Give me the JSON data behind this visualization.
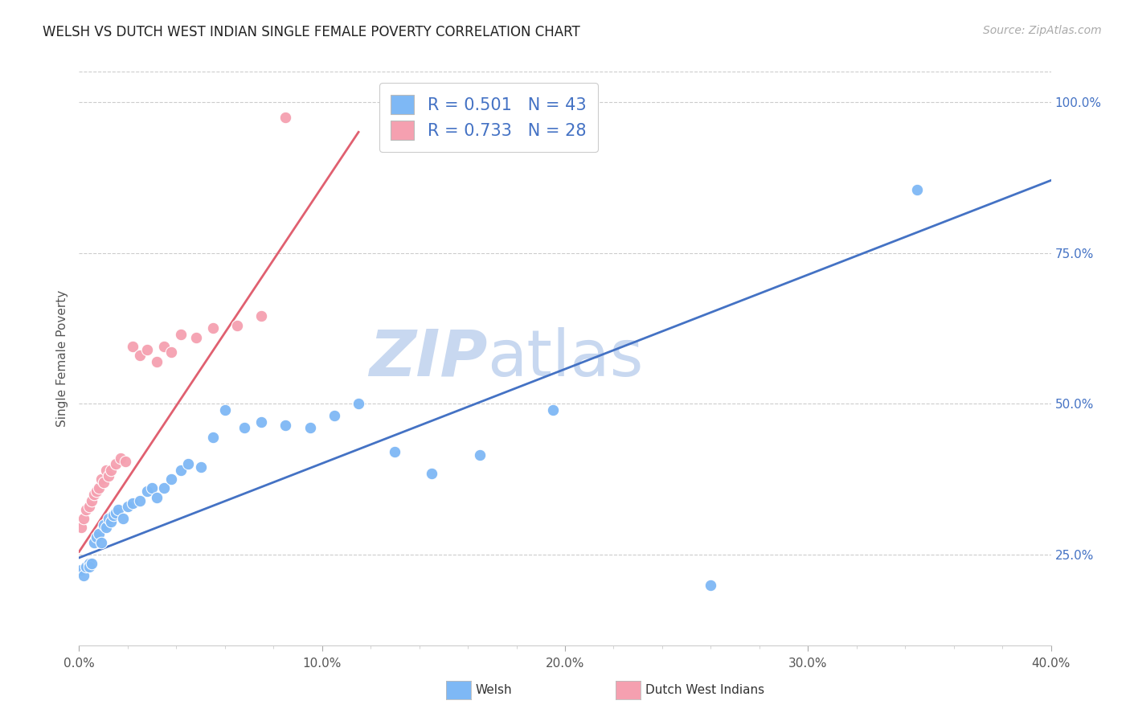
{
  "title": "WELSH VS DUTCH WEST INDIAN SINGLE FEMALE POVERTY CORRELATION CHART",
  "source": "Source: ZipAtlas.com",
  "ylabel_text": "Single Female Poverty",
  "xlim": [
    0.0,
    0.4
  ],
  "ylim": [
    0.1,
    1.05
  ],
  "xtick_labels": [
    "0.0%",
    "",
    "",
    "",
    "",
    "10.0%",
    "",
    "",
    "",
    "",
    "20.0%",
    "",
    "",
    "",
    "",
    "30.0%",
    "",
    "",
    "",
    "",
    "40.0%"
  ],
  "xtick_vals": [
    0.0,
    0.02,
    0.04,
    0.06,
    0.08,
    0.1,
    0.12,
    0.14,
    0.16,
    0.18,
    0.2,
    0.22,
    0.24,
    0.26,
    0.28,
    0.3,
    0.32,
    0.34,
    0.36,
    0.38,
    0.4
  ],
  "ytick_labels": [
    "25.0%",
    "50.0%",
    "75.0%",
    "100.0%"
  ],
  "ytick_vals": [
    0.25,
    0.5,
    0.75,
    1.0
  ],
  "welsh_color": "#7EB8F5",
  "dutch_color": "#F5A0B0",
  "welsh_line_color": "#4472C4",
  "dutch_line_color": "#E06070",
  "welsh_R": 0.501,
  "welsh_N": 43,
  "dutch_R": 0.733,
  "dutch_N": 28,
  "watermark_color": "#C8D8F0",
  "legend_label_welsh": "Welsh",
  "legend_label_dutch": "Dutch West Indians",
  "welsh_x": [
    0.001,
    0.002,
    0.003,
    0.004,
    0.004,
    0.005,
    0.006,
    0.007,
    0.008,
    0.009,
    0.01,
    0.011,
    0.012,
    0.013,
    0.014,
    0.015,
    0.016,
    0.018,
    0.02,
    0.022,
    0.025,
    0.028,
    0.03,
    0.032,
    0.035,
    0.038,
    0.042,
    0.045,
    0.05,
    0.055,
    0.06,
    0.068,
    0.075,
    0.085,
    0.095,
    0.105,
    0.115,
    0.13,
    0.145,
    0.165,
    0.195,
    0.26,
    0.345
  ],
  "welsh_y": [
    0.225,
    0.215,
    0.23,
    0.235,
    0.23,
    0.235,
    0.27,
    0.28,
    0.285,
    0.27,
    0.3,
    0.295,
    0.31,
    0.305,
    0.315,
    0.32,
    0.325,
    0.31,
    0.33,
    0.335,
    0.34,
    0.355,
    0.36,
    0.345,
    0.36,
    0.375,
    0.39,
    0.4,
    0.395,
    0.445,
    0.49,
    0.46,
    0.47,
    0.465,
    0.46,
    0.48,
    0.5,
    0.42,
    0.385,
    0.415,
    0.49,
    0.2,
    0.855
  ],
  "dutch_x": [
    0.001,
    0.002,
    0.003,
    0.004,
    0.005,
    0.006,
    0.007,
    0.008,
    0.009,
    0.01,
    0.011,
    0.012,
    0.013,
    0.015,
    0.017,
    0.019,
    0.022,
    0.025,
    0.028,
    0.032,
    0.035,
    0.038,
    0.042,
    0.048,
    0.055,
    0.065,
    0.075,
    0.085
  ],
  "dutch_y": [
    0.295,
    0.31,
    0.325,
    0.33,
    0.34,
    0.35,
    0.355,
    0.36,
    0.375,
    0.37,
    0.39,
    0.38,
    0.39,
    0.4,
    0.41,
    0.405,
    0.595,
    0.58,
    0.59,
    0.57,
    0.595,
    0.585,
    0.615,
    0.61,
    0.625,
    0.63,
    0.645,
    0.975
  ],
  "welsh_line_x": [
    0.0,
    0.4
  ],
  "welsh_line_y": [
    0.245,
    0.87
  ],
  "dutch_line_x": [
    0.0,
    0.115
  ],
  "dutch_line_y": [
    0.255,
    0.95
  ]
}
